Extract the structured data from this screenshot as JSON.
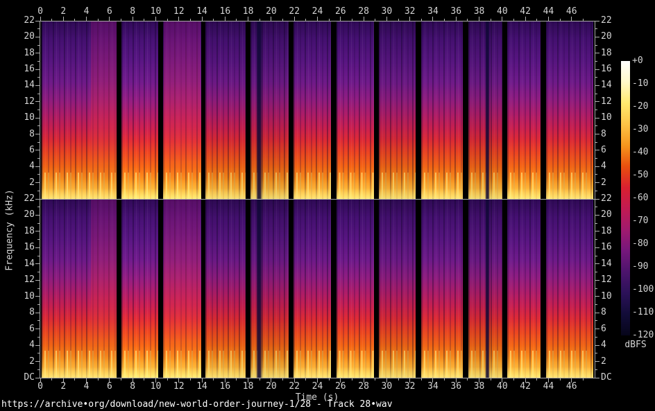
{
  "caption": "https://archive•org/download/new-world-order-journey-1/28 - Track 28•wav",
  "axes": {
    "time": {
      "label": "Time (s)",
      "unit": "s",
      "range": [
        0,
        48
      ],
      "major_step": 2,
      "minor_step": 1,
      "tick_labels": [
        "0",
        "2",
        "4",
        "6",
        "8",
        "10",
        "12",
        "14",
        "16",
        "18",
        "20",
        "22",
        "24",
        "26",
        "28",
        "30",
        "32",
        "34",
        "36",
        "38",
        "40",
        "42",
        "44",
        "46"
      ]
    },
    "frequency": {
      "label": "Frequency (kHz)",
      "unit": "kHz",
      "range": [
        0,
        22
      ],
      "major_step": 2,
      "minor_step": 1,
      "upper_channel_tick_labels": [
        "22",
        "20",
        "18",
        "16",
        "14",
        "12",
        "10",
        "8",
        "6",
        "4",
        "2"
      ],
      "lower_channel_tick_labels": [
        "22",
        "20",
        "18",
        "16",
        "14",
        "12",
        "10",
        "8",
        "6",
        "4",
        "2",
        "DC"
      ]
    }
  },
  "colorbar": {
    "unit": "dBFS",
    "tick_labels": [
      "+0",
      "-10",
      "-20",
      "-30",
      "-40",
      "-50",
      "-60",
      "-70",
      "-80",
      "-90",
      "-100",
      "-110",
      "-120"
    ],
    "stops": [
      "#ffffff",
      "#fff9c9",
      "#ffe96e",
      "#fec446",
      "#f6961d",
      "#e94f0e",
      "#d92030",
      "#c21a52",
      "#a01a6e",
      "#75177b",
      "#4c146c",
      "#2b1158",
      "#120c38",
      "#06051a"
    ]
  },
  "style": {
    "background": "#000000",
    "axis_line_color": "#a9a9a9",
    "tick_color": "#b2b2b2",
    "label_color": "#d4d4d4",
    "caption_color": "#ffffff"
  },
  "chart_data": {
    "type": "heatmap",
    "subtype": "audio-spectrogram",
    "title": "https://archive•org/download/new-world-order-journey-1/28 - Track 28•wav",
    "xlabel": "Time (s)",
    "ylabel": "Frequency (kHz)",
    "x_range_s": [
      0,
      48
    ],
    "x_ticks_s": [
      0,
      2,
      4,
      6,
      8,
      10,
      12,
      14,
      16,
      18,
      20,
      22,
      24,
      26,
      28,
      30,
      32,
      34,
      36,
      38,
      40,
      42,
      44,
      46
    ],
    "y_range_khz": [
      0,
      22
    ],
    "y_ticks_khz": [
      22,
      20,
      18,
      16,
      14,
      12,
      10,
      8,
      6,
      4,
      2,
      0
    ],
    "channels": 2,
    "channel_layout": "upper = channel 1, lower = channel 2, stacked sharing time axis",
    "intensity_scale": {
      "label": "dBFS",
      "max": 0,
      "min": -120,
      "tick_step": 10
    },
    "segments_s": [
      [
        0.15,
        6.62
      ],
      [
        7.0,
        10.2
      ],
      [
        10.62,
        13.92
      ],
      [
        14.3,
        17.76
      ],
      [
        18.2,
        21.5
      ],
      [
        21.95,
        25.2
      ],
      [
        25.68,
        28.88
      ],
      [
        29.32,
        32.52
      ],
      [
        33.0,
        36.58
      ],
      [
        37.04,
        40.02
      ],
      [
        40.42,
        43.34
      ],
      [
        43.8,
        47.9
      ]
    ],
    "segment_tones": [
      1.0,
      1.04,
      1.03,
      0.97,
      0.94,
      1.0,
      1.02,
      0.96,
      1.0,
      0.95,
      1.02,
      1.0
    ],
    "dark_streaks_s": [
      [
        18.7,
        19.25
      ],
      [
        38.5,
        38.95
      ]
    ],
    "hot_patches_s": [
      [
        4.4,
        6.6
      ],
      [
        10.7,
        13.9
      ]
    ],
    "palette": [
      [
        0.0,
        "#2f0a55"
      ],
      [
        0.1,
        "#441070"
      ],
      [
        0.22,
        "#56157f"
      ],
      [
        0.34,
        "#6e1a88"
      ],
      [
        0.44,
        "#8e1c7e"
      ],
      [
        0.52,
        "#ab1c68"
      ],
      [
        0.6,
        "#c71f4e"
      ],
      [
        0.67,
        "#dc2a34"
      ],
      [
        0.74,
        "#e84420"
      ],
      [
        0.82,
        "#f06414"
      ],
      [
        0.89,
        "#f68c1c"
      ],
      [
        0.94,
        "#fbb135"
      ],
      [
        0.98,
        "#ffd95e"
      ],
      [
        1.0,
        "#ffe98a"
      ]
    ],
    "energy_profile": "Percussive music in ~3.5 s bursts separated by silent gaps; strongest energy below ~8 kHz (red to yellow, ~-20 to -50 dBFS) with bright yellow flame-like transients near DC; energy fades through magenta/purple above ~10 kHz to ~-80..-100 dBFS near 22 kHz; both channels nearly identical."
  }
}
